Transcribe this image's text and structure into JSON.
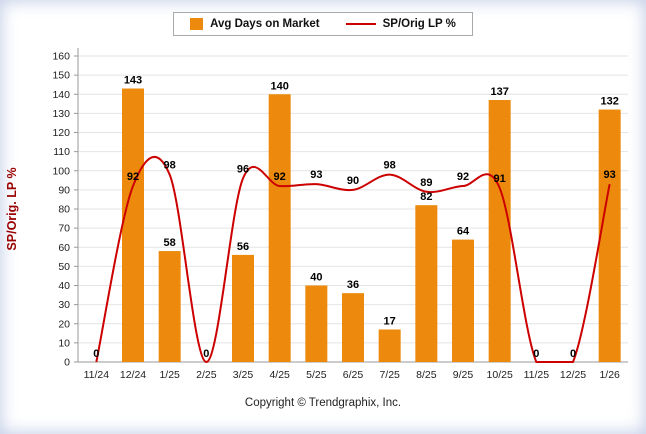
{
  "legend": {
    "bar_label": "Avg Days on Market",
    "line_label": "SP/Orig LP %"
  },
  "footer": {
    "copyright": "Copyright © Trendgraphix, Inc."
  },
  "colors": {
    "bar": "#ED8A0D",
    "line": "#CC0000",
    "axis_title": "#990000",
    "tick_label": "#222222",
    "gridline": "#e4e4e4",
    "axis_line": "#999999",
    "data_label": "#000000"
  },
  "chart_data": {
    "type": "bar",
    "subtype": "bar+line combo",
    "title": "",
    "xlabel": "",
    "ylabel": "SP/Orig. LP %",
    "ylim": [
      0,
      160
    ],
    "ytick_step": 10,
    "grid": true,
    "legend_position": "top",
    "categories": [
      "11/24",
      "12/24",
      "1/25",
      "2/25",
      "3/25",
      "4/25",
      "5/25",
      "6/25",
      "7/25",
      "8/25",
      "9/25",
      "10/25",
      "11/25",
      "12/25",
      "1/26"
    ],
    "series": [
      {
        "name": "Avg Days on Market",
        "type": "bar",
        "color": "#ED8A0D",
        "values": [
          0,
          143,
          58,
          0,
          56,
          140,
          40,
          36,
          17,
          82,
          64,
          137,
          0,
          0,
          132
        ]
      },
      {
        "name": "SP/Orig LP %",
        "type": "line",
        "color": "#CC0000",
        "values": [
          0,
          92,
          98,
          0,
          96,
          92,
          93,
          90,
          98,
          89,
          92,
          91,
          0,
          0,
          93
        ]
      }
    ]
  }
}
